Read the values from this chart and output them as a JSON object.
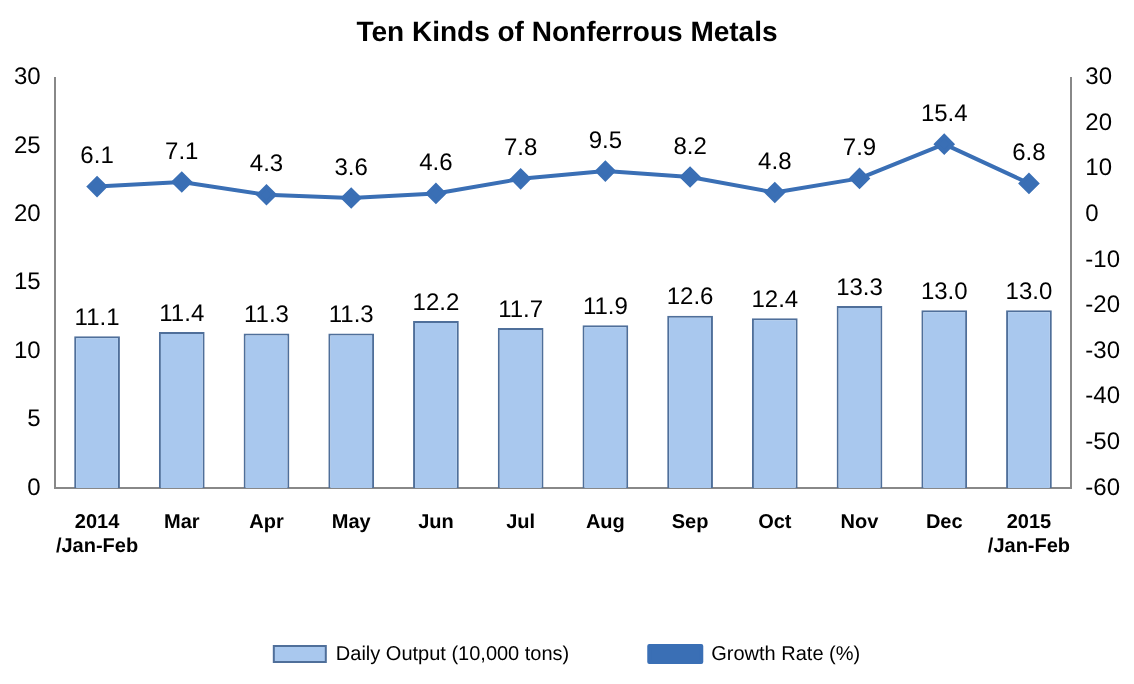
{
  "chart_data": {
    "type": "bar",
    "title": "Ten Kinds of Nonferrous Metals",
    "categories": [
      "2014\n/Jan-Feb",
      "Mar",
      "Apr",
      "May",
      "Jun",
      "Jul",
      "Aug",
      "Sep",
      "Oct",
      "Nov",
      "Dec",
      "2015\n/Jan-Feb"
    ],
    "series": [
      {
        "name": "Daily Output (10,000 tons)",
        "color": "#a9c8ee",
        "values": [
          11.1,
          11.4,
          11.3,
          11.3,
          12.2,
          11.7,
          11.9,
          12.6,
          12.4,
          13.3,
          13.0,
          13.0
        ],
        "value_labels": [
          "11.1",
          "11.4",
          "11.3",
          "11.3",
          "12.2",
          "11.7",
          "11.9",
          "12.6",
          "12.4",
          "13.3",
          "13.0",
          "13.0"
        ]
      },
      {
        "name": "Growth Rate (%)",
        "type": "line",
        "axis": "y2",
        "color": "#3a6fb5",
        "marker": "diamond",
        "values": [
          6.1,
          7.1,
          4.3,
          3.6,
          4.6,
          7.8,
          9.5,
          8.2,
          4.8,
          7.9,
          15.4,
          6.8
        ],
        "value_labels": [
          "6.1",
          "7.1",
          "4.3",
          "3.6",
          "4.6",
          "7.8",
          "9.5",
          "8.2",
          "4.8",
          "7.9",
          "15.4",
          "6.8"
        ]
      }
    ],
    "ylim": [
      0,
      30
    ],
    "yticks": [
      0,
      5,
      10,
      15,
      20,
      25,
      30
    ],
    "y2lim": [
      -60,
      30
    ],
    "y2ticks": [
      -60,
      -50,
      -40,
      -30,
      -20,
      -10,
      0,
      10,
      20,
      30
    ],
    "grid": false,
    "legend": "bottom"
  }
}
